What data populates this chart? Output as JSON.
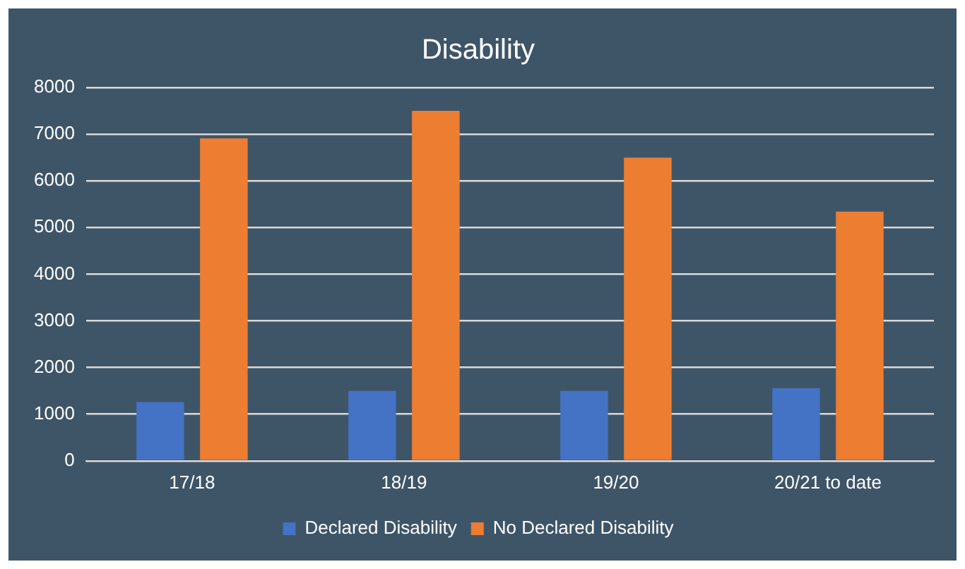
{
  "chart_data": {
    "type": "bar",
    "title": "Disability",
    "categories": [
      "17/18",
      "18/19",
      "19/20",
      "20/21 to date"
    ],
    "series": [
      {
        "name": "Declared Disability",
        "color": "#4472c4",
        "values": [
          1260,
          1500,
          1500,
          1560
        ]
      },
      {
        "name": "No Declared Disability",
        "color": "#ed7d31",
        "values": [
          6910,
          7500,
          6500,
          5340
        ]
      }
    ],
    "ylim": [
      0,
      8000
    ],
    "yticks": [
      0,
      1000,
      2000,
      3000,
      4000,
      5000,
      6000,
      7000,
      8000
    ],
    "grid": "y",
    "legend": "bottom"
  }
}
